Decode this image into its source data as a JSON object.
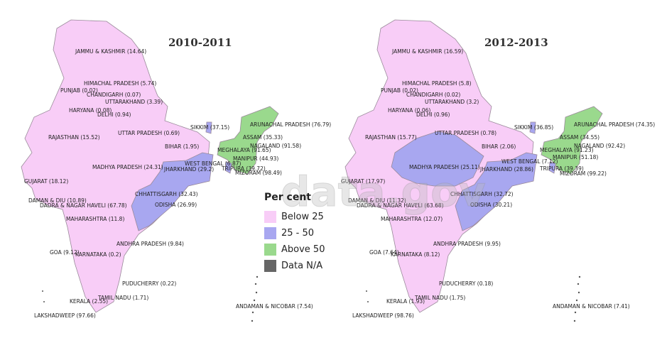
{
  "legend": {
    "title": "Per cent",
    "items": [
      {
        "label": "Below 25",
        "color": "#f8cdf7"
      },
      {
        "label": "25 - 50",
        "color": "#a8a7f0"
      },
      {
        "label": "Above 50",
        "color": "#9ad98d"
      },
      {
        "label": "Data N/A",
        "color": "#666666"
      }
    ]
  },
  "watermark": "data.gov",
  "maps": [
    {
      "year": "2010-2011",
      "categories": {
        "central_east": "25 - 50",
        "madhya_pradesh": "Below 25"
      },
      "labels": {
        "jk": "JAMMU & KASHMIR (14.64)",
        "hp": "HIMACHAL PRADESH (5.74)",
        "pb": "PUNJAB (0.02)",
        "ch": "CHANDIGARH (0.07)",
        "uk": "UTTARAKHAND (3.39)",
        "hr": "HARYANA (0.08)",
        "dl": "DELHI (0.94)",
        "rj": "RAJASTHAN (15.52)",
        "up": "UTTAR PRADESH (0.69)",
        "sk": "SIKKIM (37.15)",
        "ar": "ARUNACHAL PRADESH (76.79)",
        "as": "ASSAM (35.33)",
        "br": "BIHAR (1.95)",
        "ml": "MEGHALAYA (91.65)",
        "nl": "NAGALAND (91.58)",
        "mn": "MANIPUR (44.93)",
        "wb": "WEST BENGAL (6.87)",
        "tr": "TRIPURA (39.72)",
        "mp": "MADHYA PRADESH (24.31)",
        "jh": "JHARKHAND (29.2)",
        "mz": "MIZORAM (98.49)",
        "gj": "GUJARAT (18.12)",
        "dd": "DAMAN & DIU (10.89)",
        "dn": "DADRA & NAGAR HAVELI (67.78)",
        "cg": "CHHATTISGARH (32.43)",
        "od": "ODISHA (26.99)",
        "mh": "MAHARASHTRA (11.8)",
        "ap": "ANDHRA PRADESH (9.84)",
        "ga": "GOA (9.12)",
        "ka": "KARNATAKA (0.2)",
        "py": "PUDUCHERRY (0.22)",
        "tn": "TAMIL NADU (1.71)",
        "kl": "KERALA (2.55)",
        "an": "ANDAMAN & NICOBAR (7.54)",
        "ld": "LAKSHADWEEP (97.66)"
      }
    },
    {
      "year": "2012-2013",
      "categories": {
        "central_east": "25 - 50",
        "madhya_pradesh": "25 - 50"
      },
      "labels": {
        "jk": "JAMMU & KASHMIR (16.59)",
        "hp": "HIMACHAL PRADESH (5.8)",
        "pb": "PUNJAB (0.02)",
        "ch": "CHANDIGARH (0.02)",
        "uk": "UTTARAKHAND (3.2)",
        "hr": "HARYANA (0.06)",
        "dl": "DELHI (0.96)",
        "rj": "RAJASTHAN (15.77)",
        "up": "UTTAR PRADESH (0.78)",
        "sk": "SIKKIM (36.85)",
        "ar": "ARUNACHAL PRADESH (74.35)",
        "as": "ASSAM (34.55)",
        "br": "BIHAR (2.06)",
        "ml": "MEGHALAYA (91.23)",
        "nl": "NAGALAND (92.42)",
        "mn": "MANIPUR (51.18)",
        "wb": "WEST BENGAL (7.12)",
        "tr": "TRIPURA (39.39)",
        "mp": "MADHYA PRADESH (25.11)",
        "jh": "JHARKHAND (28.86)",
        "mz": "MIZORAM (99.22)",
        "gj": "GUJARAT (17.97)",
        "dd": "DAMAN & DIU (11.32)",
        "dn": "DADRA & NAGAR HAVELI (63.68)",
        "cg": "CHHATTISGARH (32.72)",
        "od": "ODISHA (30.21)",
        "mh": "MAHARASHTRA (12.07)",
        "ap": "ANDHRA PRADESH (9.95)",
        "ga": "GOA (7.64)",
        "ka": "KARNATAKA (8.12)",
        "py": "PUDUCHERRY (0.18)",
        "tn": "TAMIL NADU (1.75)",
        "kl": "KERALA (1.93)",
        "an": "ANDAMAN & NICOBAR (7.41)",
        "ld": "LAKSHADWEEP (98.76)"
      }
    }
  ]
}
